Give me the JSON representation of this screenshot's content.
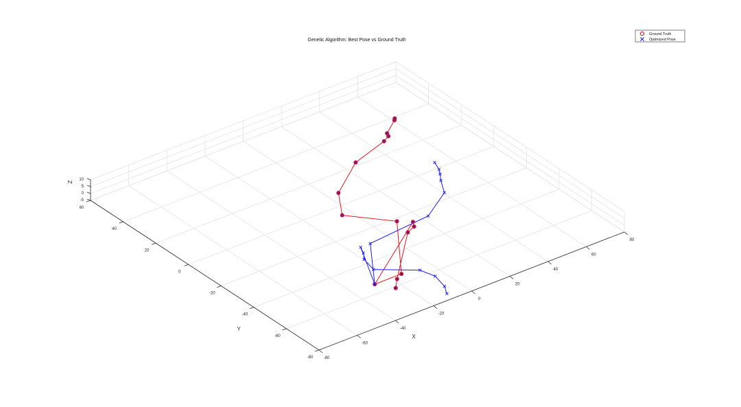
{
  "chart_data": {
    "type": "line",
    "projection": "3d",
    "title": "Genetic Algorithm: Best Pose vs Ground Truth",
    "xlabel": "X",
    "ylabel": "Y",
    "zlabel": "Z",
    "xlim": [
      -80,
      80
    ],
    "ylim": [
      -80,
      60
    ],
    "zlim": [
      -5,
      10
    ],
    "xticks": [
      "-80",
      "-60",
      "-40",
      "-20",
      "0",
      "20",
      "40",
      "60",
      "80"
    ],
    "yticks": [
      "-80",
      "-60",
      "-40",
      "-20",
      "0",
      "20",
      "40",
      "60"
    ],
    "zticks": [
      "-5",
      "0",
      "5",
      "10"
    ],
    "grid": true,
    "legend": {
      "position": "top-right",
      "entries": [
        "Ground Truth",
        "Optimized Pose"
      ]
    },
    "colors": {
      "ground_truth": "#e8141f",
      "optimized": "#1a1aff",
      "marker_fill": "#7a1a7a"
    },
    "series": [
      {
        "name": "Ground Truth",
        "color": "#e8141f",
        "marker": "o",
        "points": [
          [
            -27,
            -65,
            0
          ],
          [
            -22,
            -60,
            0
          ],
          [
            5,
            -35,
            0
          ],
          [
            10,
            -33,
            0
          ],
          [
            12,
            -30,
            0
          ],
          [
            -32,
            -58,
            0
          ],
          [
            -18,
            -58,
            0
          ],
          [
            7,
            -26,
            0
          ],
          [
            -8,
            -10,
            0
          ],
          [
            2,
            4,
            0
          ],
          [
            23,
            18,
            0
          ],
          [
            43,
            24,
            0
          ],
          [
            47,
            26,
            0
          ],
          [
            48,
            28,
            0
          ],
          [
            57,
            34,
            0
          ],
          [
            58,
            35,
            0
          ]
        ]
      },
      {
        "name": "Optimized Pose",
        "color": "#1a1aff",
        "marker": "x",
        "points": [
          [
            -13,
            -80,
            0
          ],
          [
            -10,
            -75,
            0
          ],
          [
            -8,
            -67,
            0
          ],
          [
            -10,
            -60,
            0
          ],
          [
            -25,
            -49,
            0
          ],
          [
            -23,
            -41,
            0
          ],
          [
            -20,
            -37,
            0
          ],
          [
            -18,
            -33,
            0
          ],
          [
            -32,
            -58,
            0
          ],
          [
            -13,
            -33,
            0
          ],
          [
            20,
            -30,
            0
          ],
          [
            37,
            -20,
            0
          ],
          [
            42,
            -12,
            0
          ],
          [
            45,
            -8,
            0
          ],
          [
            47,
            -5,
            0
          ],
          [
            49,
            0,
            0
          ]
        ]
      }
    ]
  }
}
